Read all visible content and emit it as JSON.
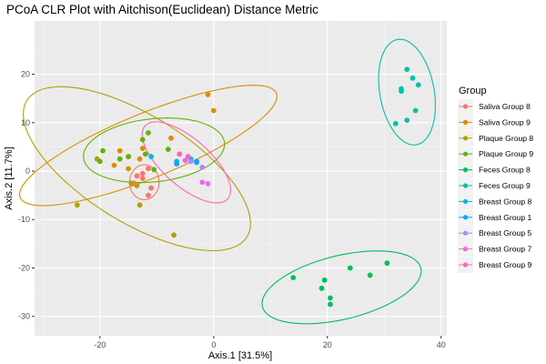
{
  "chart_data": {
    "type": "scatter",
    "title": "PCoA CLR Plot with Aitchison(Euclidean) Distance Metric",
    "xlabel": "Axis.1   [31.5%]",
    "ylabel": "Axis.2   [11.7%]",
    "xlim": [
      -31.5,
      41
    ],
    "ylim": [
      -34,
      31
    ],
    "xticks": [
      -20,
      0,
      20,
      40
    ],
    "yticks": [
      -30,
      -20,
      -10,
      0,
      10,
      20
    ],
    "xtick_labels": [
      "-20",
      "0",
      "20",
      "40"
    ],
    "ytick_labels": [
      "-30",
      "-20",
      "-10",
      "0",
      "10",
      "20"
    ],
    "grid": true,
    "legend_title": "Group",
    "legend_position": "right",
    "series": [
      {
        "name": "Saliva Group 8",
        "color": "#F8766D",
        "points": [
          [
            -13.5,
            -1.0
          ],
          [
            -12.5,
            -0.5
          ],
          [
            -11.5,
            0.5
          ],
          [
            -12.5,
            -1.5
          ],
          [
            -14,
            -2.5
          ],
          [
            -11,
            -3.5
          ],
          [
            -11.5,
            -5
          ]
        ],
        "ellipse": {
          "cx": -12.2,
          "cy": -2.3,
          "rx": 2.6,
          "ry": 3.6,
          "angle": 0
        }
      },
      {
        "name": "Saliva Group 9",
        "color": "#DB8E00",
        "points": [
          [
            -1,
            15.8
          ],
          [
            0,
            12.5
          ],
          [
            -16.5,
            4.2
          ],
          [
            -12.5,
            4.7
          ],
          [
            -15,
            3
          ],
          [
            -13,
            2.5
          ],
          [
            -7.5,
            6.8
          ],
          [
            -15,
            0.5
          ],
          [
            -17.5,
            1.2
          ]
        ],
        "ellipse": {
          "cx": -11.5,
          "cy": 5.3,
          "rx": 25,
          "ry": 6.5,
          "angle": 26
        }
      },
      {
        "name": "Plaque Group 8",
        "color": "#AEA200",
        "points": [
          [
            -24,
            -7
          ],
          [
            -7,
            -13.2
          ],
          [
            -13,
            -7
          ],
          [
            -20.5,
            2.5
          ],
          [
            -14.5,
            -2.5
          ],
          [
            -13.5,
            -3
          ]
        ],
        "ellipse": {
          "cx": -13.5,
          "cy": 0.5,
          "rx": 24,
          "ry": 10.5,
          "angle": -38
        }
      },
      {
        "name": "Plaque Group 9",
        "color": "#64B200",
        "points": [
          [
            -19.5,
            4.2
          ],
          [
            -20,
            2
          ],
          [
            -12.5,
            6.5
          ],
          [
            -11.5,
            7.9
          ],
          [
            -15,
            3
          ],
          [
            -12,
            3.5
          ],
          [
            -10.5,
            0.3
          ],
          [
            -8,
            4.5
          ],
          [
            -16.5,
            2.5
          ]
        ],
        "ellipse": {
          "cx": -10.5,
          "cy": 4.3,
          "rx": 12.5,
          "ry": 6.5,
          "angle": 8
        }
      },
      {
        "name": "Feces Group 8",
        "color": "#00BD5C",
        "points": [
          [
            14,
            -22
          ],
          [
            19.5,
            -22.5
          ],
          [
            19,
            -24.2
          ],
          [
            20.5,
            -26.2
          ],
          [
            20.5,
            -27.5
          ],
          [
            24,
            -20
          ],
          [
            27.5,
            -21.5
          ],
          [
            30.5,
            -19
          ]
        ],
        "ellipse": {
          "cx": 22.5,
          "cy": -24,
          "rx": 14.5,
          "ry": 6.5,
          "angle": 17
        }
      },
      {
        "name": "Feces Group 9",
        "color": "#00C1A7",
        "points": [
          [
            34,
            21
          ],
          [
            35,
            19.2
          ],
          [
            36,
            17.8
          ],
          [
            33,
            16.5
          ],
          [
            33,
            17
          ],
          [
            35.5,
            12.5
          ],
          [
            34,
            10.5
          ],
          [
            32,
            9.8
          ]
        ],
        "ellipse": {
          "cx": 34,
          "cy": 16.3,
          "rx": 4.8,
          "ry": 11,
          "angle": 8
        }
      },
      {
        "name": "Breast Group 8",
        "color": "#00BADE",
        "points": [
          [
            -11,
            3
          ],
          [
            -6.5,
            2
          ],
          [
            -4,
            2.5
          ],
          [
            -3,
            1.8
          ]
        ],
        "ellipse": null
      },
      {
        "name": "Breast Group 1",
        "color": "#00A6FF",
        "points": [
          [
            -6.5,
            1.5
          ],
          [
            -3,
            2
          ]
        ],
        "ellipse": null
      },
      {
        "name": "Breast Group 5",
        "color": "#B385FF",
        "points": [
          [
            -2,
            0.8
          ],
          [
            -4,
            2
          ]
        ],
        "ellipse": null
      },
      {
        "name": "Breast Group 7",
        "color": "#EF67EB",
        "points": [
          [
            -5,
            2.2
          ],
          [
            -2,
            -2.3
          ],
          [
            -1,
            -2.6
          ],
          [
            -6,
            3.5
          ]
        ],
        "ellipse": null
      },
      {
        "name": "Breast Group 9",
        "color": "#FF63B6",
        "points": [
          [
            -4.5,
            3
          ],
          [
            -6,
            3.5
          ]
        ],
        "ellipse": {
          "cx": -4.8,
          "cy": 1.8,
          "rx": 10.5,
          "ry": 4.5,
          "angle": -48
        }
      }
    ]
  }
}
